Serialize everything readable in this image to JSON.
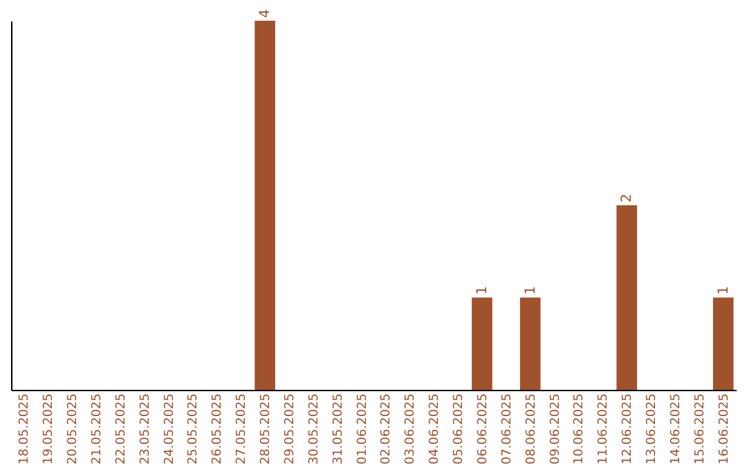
{
  "chart_data": {
    "type": "bar",
    "categories": [
      "18.05.2025",
      "19.05.2025",
      "20.05.2025",
      "21.05.2025",
      "22.05.2025",
      "23.05.2025",
      "24.05.2025",
      "25.05.2025",
      "26.05.2025",
      "27.05.2025",
      "28.05.2025",
      "29.05.2025",
      "30.05.2025",
      "31.05.2025",
      "01.06.2025",
      "02.06.2025",
      "03.06.2025",
      "04.06.2025",
      "05.06.2025",
      "06.06.2025",
      "07.06.2025",
      "08.06.2025",
      "09.06.2025",
      "10.06.2025",
      "11.06.2025",
      "12.06.2025",
      "13.06.2025",
      "14.06.2025",
      "15.06.2025",
      "16.06.2025"
    ],
    "values": [
      0,
      0,
      0,
      0,
      0,
      0,
      0,
      0,
      0,
      0,
      4,
      0,
      0,
      0,
      0,
      0,
      0,
      0,
      0,
      1,
      0,
      1,
      0,
      0,
      0,
      2,
      0,
      0,
      0,
      1
    ],
    "value_labels": [
      null,
      null,
      null,
      null,
      null,
      null,
      null,
      null,
      null,
      null,
      "4",
      null,
      null,
      null,
      null,
      null,
      null,
      null,
      null,
      "1",
      null,
      "1",
      null,
      null,
      null,
      "2",
      null,
      null,
      null,
      "1"
    ],
    "color": "#a0522d",
    "ylim": [
      0,
      4
    ],
    "tick_labels": "x"
  }
}
